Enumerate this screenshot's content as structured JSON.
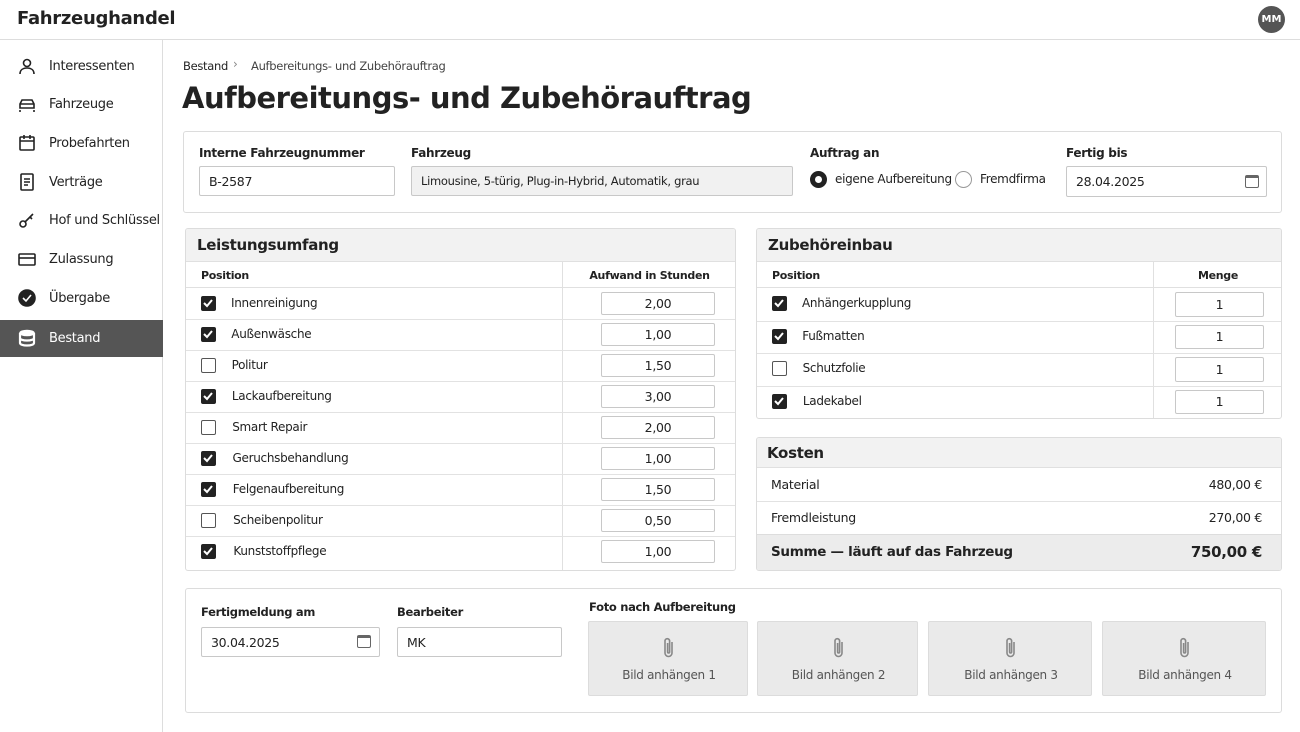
{
  "header": {
    "app_title": "Fahrzeughandel",
    "user_initials": "MM"
  },
  "sidebar": {
    "items": [
      {
        "label": "Interessenten",
        "active": false
      },
      {
        "label": "Fahrzeuge",
        "active": false
      },
      {
        "label": "Probefahrten",
        "active": false
      },
      {
        "label": "Verträge",
        "active": false
      },
      {
        "label": "Hof und Schlüssel",
        "active": false
      },
      {
        "label": "Zulassung",
        "active": false
      },
      {
        "label": "Übergabe",
        "active": false
      },
      {
        "label": "Bestand",
        "active": true
      }
    ]
  },
  "breadcrumb": [
    "Bestand",
    "Aufbereitungs- und Zubehörauftrag"
  ],
  "page_title": "Aufbereitungs- und Zubehörauftrag",
  "order": {
    "vehicle_number_label": "Interne Fahrzeugnummer",
    "vehicle_number": "B-2587",
    "vehicle_label": "Fahrzeug",
    "vehicle": "Limousine, 5-türig, Plug-in-Hybrid, Automatik, grau",
    "assign_label": "Auftrag an",
    "assign_options": [
      {
        "label": "eigene Aufbereitung",
        "selected": true
      },
      {
        "label": "Fremdfirma",
        "selected": false
      }
    ],
    "due_label": "Fertig bis",
    "due": "28.04.2025"
  },
  "services": {
    "title": "Leistungsumfang",
    "columns": [
      "Position",
      "Aufwand in Stunden"
    ],
    "rows": [
      {
        "position": "Innenreinigung",
        "checked": true,
        "hours": "2,00"
      },
      {
        "position": "Außenwäsche",
        "checked": true,
        "hours": "1,00"
      },
      {
        "position": "Politur",
        "checked": false,
        "hours": "1,50"
      },
      {
        "position": "Lackaufbereitung",
        "checked": true,
        "hours": "3,00"
      },
      {
        "position": "Smart Repair",
        "checked": false,
        "hours": "2,00"
      },
      {
        "position": "Geruchsbehandlung",
        "checked": true,
        "hours": "1,00"
      },
      {
        "position": "Felgenaufbereitung",
        "checked": true,
        "hours": "1,50"
      },
      {
        "position": "Scheibenpolitur",
        "checked": false,
        "hours": "0,50"
      },
      {
        "position": "Kunststoffpflege",
        "checked": true,
        "hours": "1,00"
      }
    ]
  },
  "accessories": {
    "title": "Zubehöreinbau",
    "columns": [
      "Position",
      "Menge"
    ],
    "rows": [
      {
        "position": "Anhängerkupplung",
        "checked": true,
        "quantity": "1"
      },
      {
        "position": "Fußmatten",
        "checked": true,
        "quantity": "1"
      },
      {
        "position": "Schutzfolie",
        "checked": false,
        "quantity": "1"
      },
      {
        "position": "Ladekabel",
        "checked": true,
        "quantity": "1"
      }
    ]
  },
  "costs": {
    "title": "Kosten",
    "rows": [
      {
        "label": "Material",
        "amount": "480,00 €"
      },
      {
        "label": "Fremdleistung",
        "amount": "270,00 €"
      }
    ],
    "total_label": "Summe — läuft auf das Fahrzeug",
    "total": "750,00 €"
  },
  "completion": {
    "date_label": "Fertigmeldung am",
    "date": "30.04.2025",
    "editor_label": "Bearbeiter",
    "editor": "MK",
    "photos_label": "Foto nach Aufbereitung",
    "photos": [
      "Bild anhängen 1",
      "Bild anhängen 2",
      "Bild anhängen 3",
      "Bild anhängen 4"
    ]
  }
}
